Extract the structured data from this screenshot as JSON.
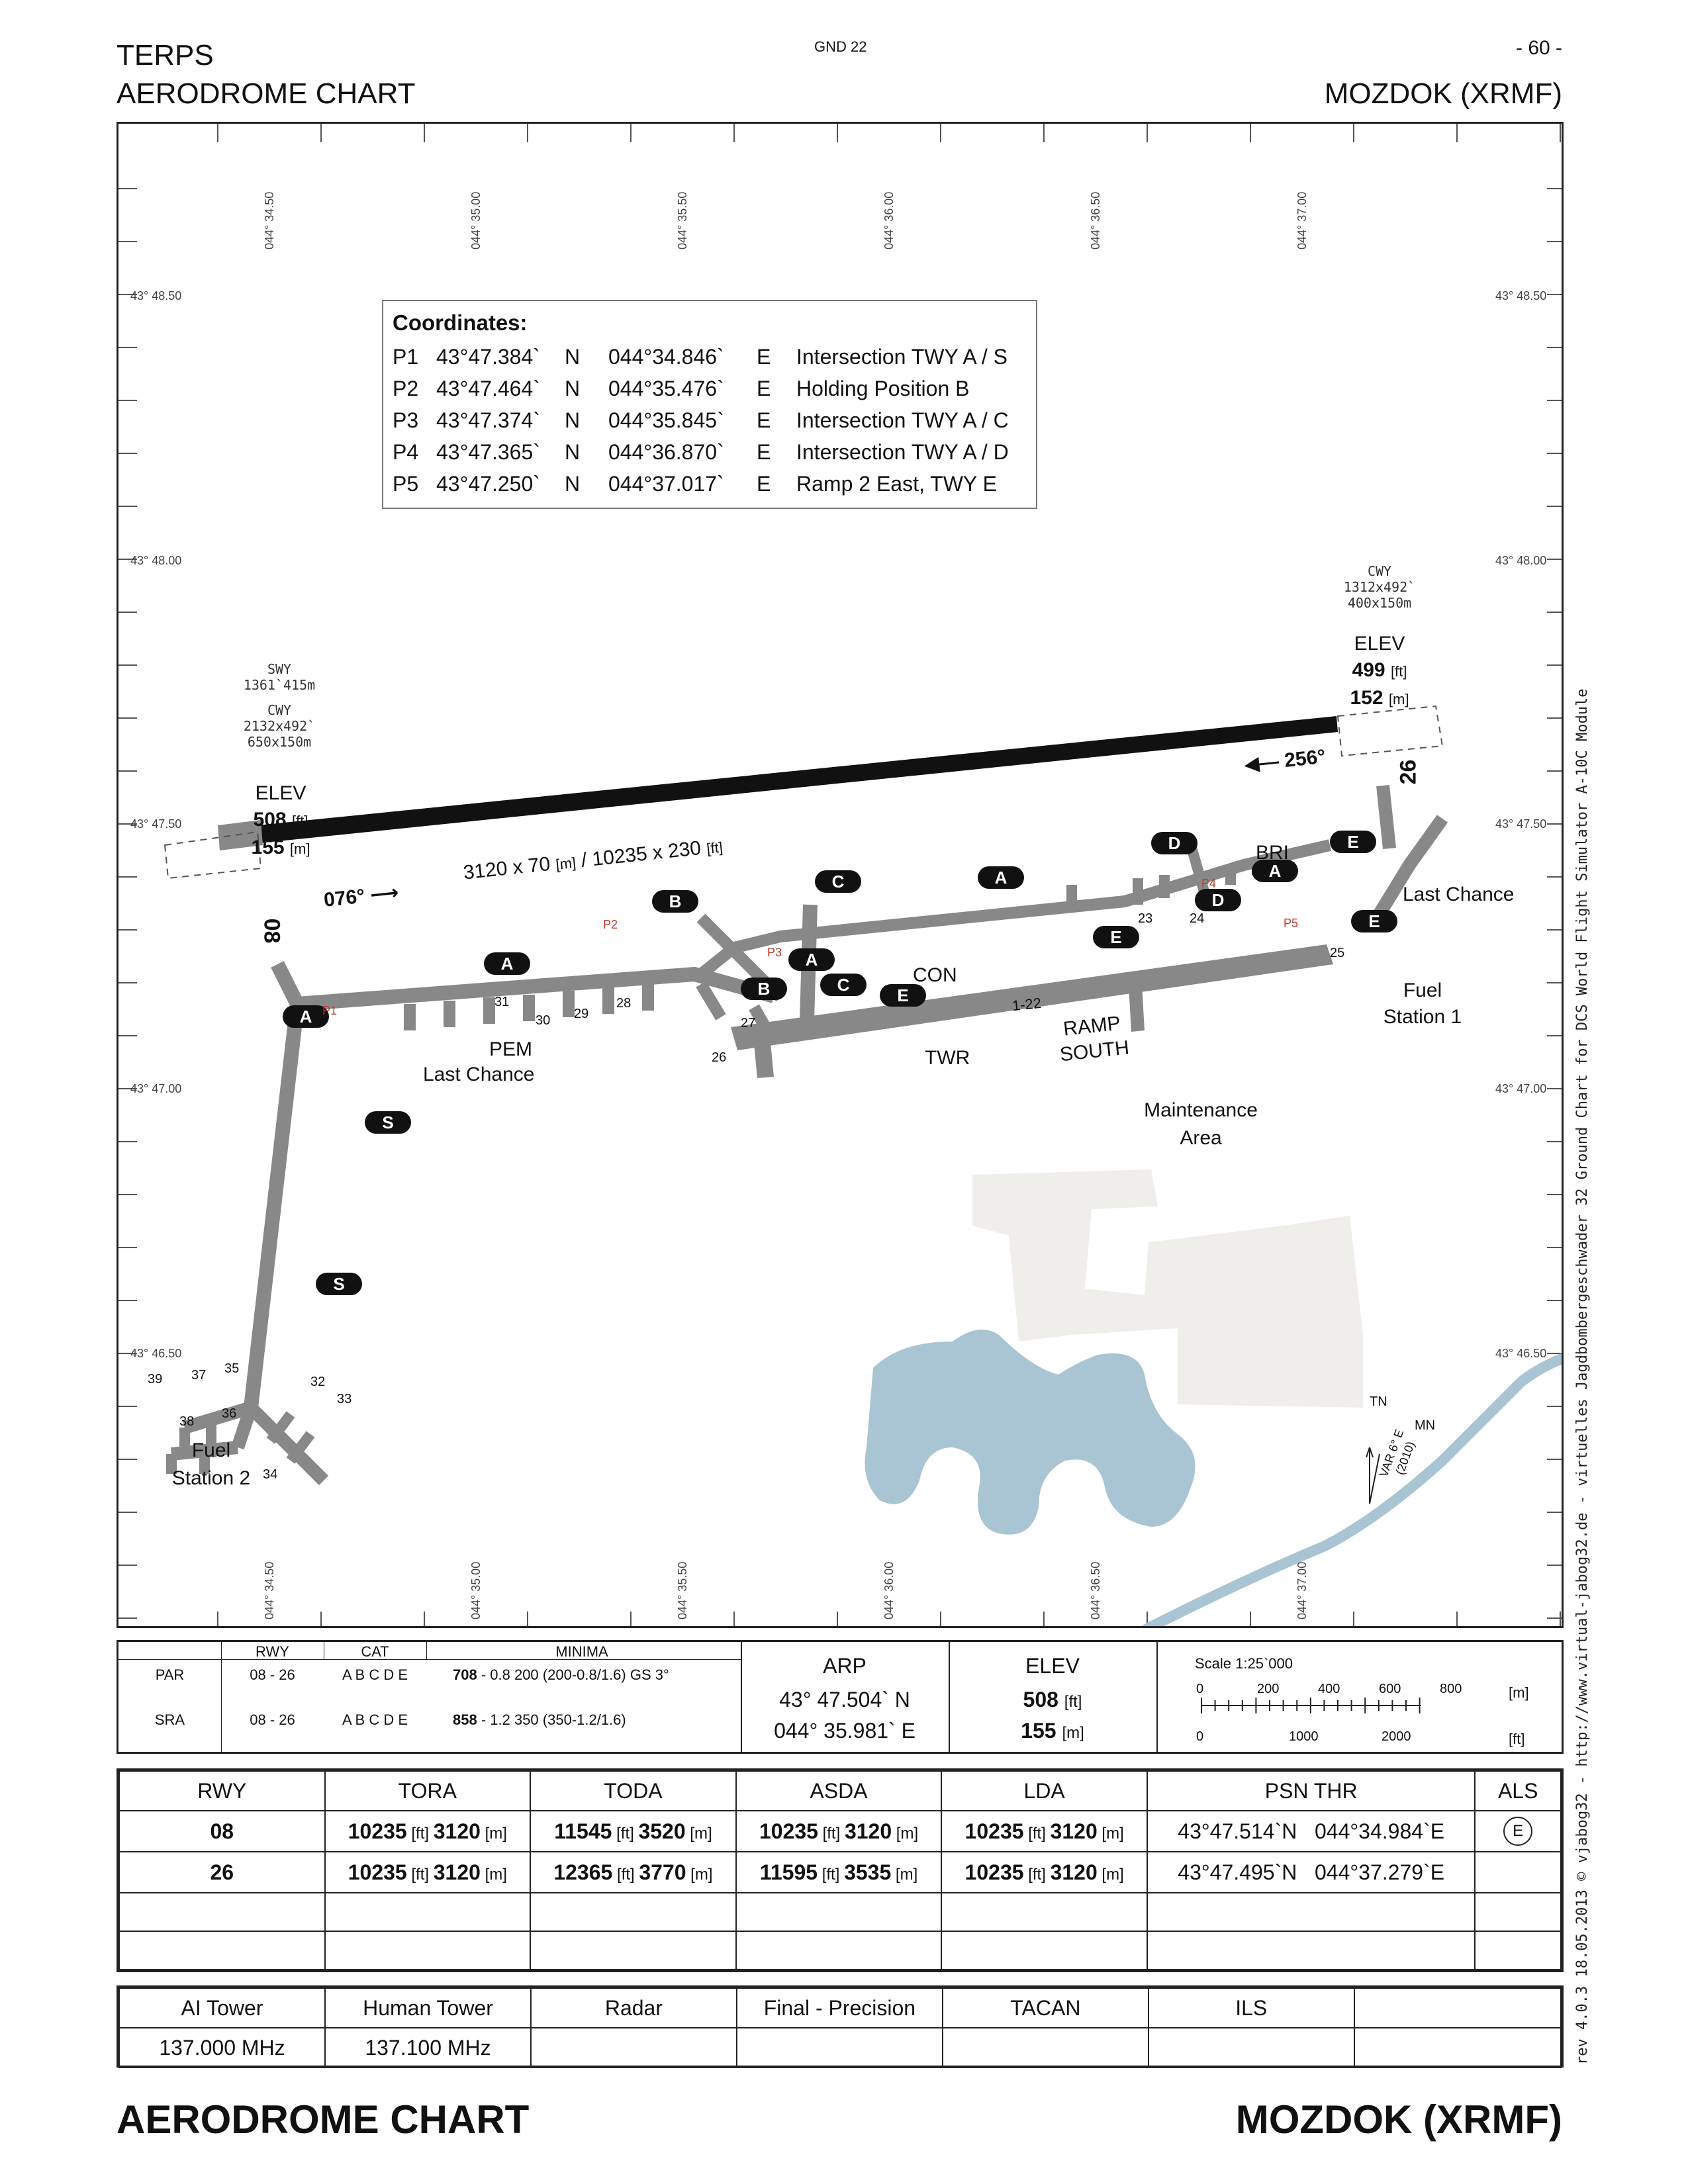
{
  "header": {
    "left_line1": "TERPS",
    "left_line2": "AERODROME CHART",
    "center": "GND 22",
    "page_number": "- 60 -",
    "right_title": "MOZDOK (XRMF)"
  },
  "side_note": "rev 4.0.3   18.05.2013   © vjabog32 - http://www.virtual-jabog32.de - virtuelles Jagdbombergeschwader 32   Ground Chart for DCS World Flight Simulator A-10C Module",
  "map": {
    "lon_labels": [
      "044° 34.50",
      "044° 35.00",
      "044° 35.50",
      "044° 36.00",
      "044° 36.50",
      "044° 37.00"
    ],
    "lat_labels": [
      "43° 48.50",
      "43° 48.00",
      "43° 47.50",
      "43° 47.00",
      "43° 46.50"
    ],
    "coordinates": {
      "title": "Coordinates:",
      "rows": [
        {
          "id": "P1",
          "lat": "43°47.384`",
          "ns": "N",
          "lon": "044°34.846`",
          "ew": "E",
          "desc": "Intersection TWY A / S"
        },
        {
          "id": "P2",
          "lat": "43°47.464`",
          "ns": "N",
          "lon": "044°35.476`",
          "ew": "E",
          "desc": "Holding Position B"
        },
        {
          "id": "P3",
          "lat": "43°47.374`",
          "ns": "N",
          "lon": "044°35.845`",
          "ew": "E",
          "desc": "Intersection TWY A / C"
        },
        {
          "id": "P4",
          "lat": "43°47.365`",
          "ns": "N",
          "lon": "044°36.870`",
          "ew": "E",
          "desc": "Intersection TWY A / D"
        },
        {
          "id": "P5",
          "lat": "43°47.250`",
          "ns": "N",
          "lon": "044°37.017`",
          "ew": "E",
          "desc": "Ramp 2 East, TWY E"
        }
      ]
    },
    "west": {
      "swy_label": "SWY",
      "swy_value": "1361`415m",
      "cwy_label": "CWY",
      "cwy_value1": "2132x492`",
      "cwy_value2": "650x150m",
      "elev_label": "ELEV",
      "elev_ft": "508",
      "elev_m": "155",
      "heading": "076°",
      "rwy_id": "08"
    },
    "east": {
      "cwy_label": "CWY",
      "cwy_value1": "1312x492`",
      "cwy_value2": "400x150m",
      "elev_label": "ELEV",
      "elev_ft": "499",
      "elev_m": "152",
      "heading": "256°",
      "rwy_id": "26"
    },
    "unit_ft": "[ft]",
    "unit_m": "[m]",
    "runway_dims_a": "3120 x 70",
    "runway_dims_b": "/ 10235 x 230",
    "taxiways": [
      "A",
      "A",
      "A",
      "A",
      "A",
      "B",
      "B",
      "C",
      "C",
      "D",
      "D",
      "E",
      "E",
      "E",
      "E",
      "S",
      "S"
    ],
    "points": [
      "P1",
      "P2",
      "P3",
      "P4",
      "P5"
    ],
    "labels": {
      "bri": "BRI",
      "last_chance_e": "Last Chance",
      "fuel1_a": "Fuel",
      "fuel1_b": "Station 1",
      "con": "CON",
      "rwy_marking": "1-22",
      "pem": "PEM",
      "last_chance_w": "Last Chance",
      "twr": "TWR",
      "ramp_a": "RAMP",
      "ramp_b": "SOUTH",
      "maint_a": "Maintenance",
      "maint_b": "Area",
      "fuel2_a": "Fuel",
      "fuel2_b": "Station 2"
    },
    "spots": [
      "23",
      "24",
      "25",
      "26",
      "27",
      "28",
      "29",
      "30",
      "31",
      "32",
      "33",
      "34",
      "35",
      "36",
      "37",
      "38",
      "39"
    ],
    "north": {
      "tn": "TN",
      "mn": "MN",
      "var1": "VAR 6° E",
      "var2": "(2010)"
    }
  },
  "minima": {
    "headers": [
      "RWY",
      "CAT",
      "MINIMA"
    ],
    "rows": [
      {
        "type": "PAR",
        "rwy": "08 - 26",
        "cat": "A B C D E",
        "min_bold": "708",
        "min_rest": "- 0.8 200 (200-0.8/1.6) GS 3°"
      },
      {
        "type": "SRA",
        "rwy": "08 - 26",
        "cat": "A B C D E",
        "min_bold": "858",
        "min_rest": "- 1.2 350 (350-1.2/1.6)"
      }
    ],
    "arp_label": "ARP",
    "arp_lat": "43° 47.504`  N",
    "arp_lon": "044° 35.981`  E",
    "elev_label": "ELEV",
    "elev_ft": "508",
    "elev_m": "155",
    "scale_title": "Scale 1:25`000",
    "scale_m": [
      "0",
      "200",
      "400",
      "600",
      "800"
    ],
    "scale_m_unit": "[m]",
    "scale_ft": [
      "0",
      "1000",
      "2000"
    ],
    "scale_ft_unit": "[ft]"
  },
  "runways": {
    "headers": [
      "RWY",
      "TORA",
      "TODA",
      "ASDA",
      "LDA",
      "PSN THR",
      "ALS"
    ],
    "rows": [
      {
        "rwy": "08",
        "tora_ft": "10235",
        "tora_m": "3120",
        "toda_ft": "11545",
        "toda_m": "3520",
        "asda_ft": "10235",
        "asda_m": "3120",
        "lda_ft": "10235",
        "lda_m": "3120",
        "psn": "43°47.514`N   044°34.984`E",
        "als": "E"
      },
      {
        "rwy": "26",
        "tora_ft": "10235",
        "tora_m": "3120",
        "toda_ft": "12365",
        "toda_m": "3770",
        "asda_ft": "11595",
        "asda_m": "3535",
        "lda_ft": "10235",
        "lda_m": "3120",
        "psn": "43°47.495`N   044°37.279`E",
        "als": ""
      }
    ]
  },
  "frequencies": {
    "headers": [
      "AI Tower",
      "Human Tower",
      "Radar",
      "Final - Precision",
      "TACAN",
      "ILS",
      ""
    ],
    "values": [
      "137.000 MHz",
      "137.100 MHz",
      "",
      "",
      "",
      "",
      ""
    ]
  },
  "footer": {
    "left": "AERODROME CHART",
    "right": "MOZDOK (XRMF)"
  },
  "colors": {
    "taxiway": "#888888",
    "runway": "#111111",
    "lake": "#a9c4d2",
    "buildings": "#efeeea",
    "river": "#a9c4d2",
    "point": "#c0392b"
  }
}
